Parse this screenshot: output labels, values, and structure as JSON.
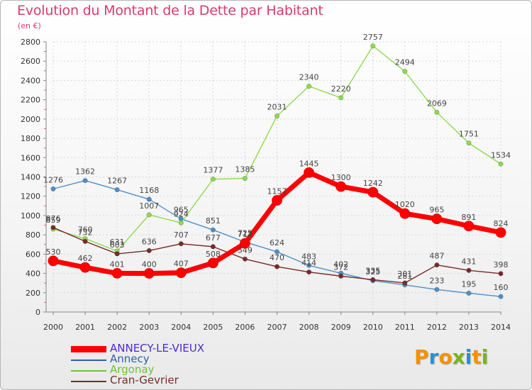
{
  "title": "Evolution du Montant de la Dette par Habitant",
  "subtitle": "(en €)",
  "logo": {
    "text": "Proxiti",
    "colors": [
      "#f39200",
      "#2a8fd1",
      "#f39200",
      "#79b51c",
      "#2a8fd1",
      "#f39200",
      "#79b51c"
    ]
  },
  "chart_data": {
    "type": "line",
    "title": "Evolution du Montant de la Dette par Habitant",
    "ylabel": "(en €)",
    "x": [
      "2000",
      "2001",
      "2002",
      "2003",
      "2004",
      "2005",
      "2006",
      "2007",
      "2008",
      "2009",
      "2010",
      "2011",
      "2012",
      "2013",
      "2014"
    ],
    "ylim": [
      0,
      2800
    ],
    "yticks": [
      0,
      200,
      400,
      600,
      800,
      1000,
      1200,
      1400,
      1600,
      1800,
      2000,
      2200,
      2400,
      2600,
      2800
    ],
    "grid": true,
    "legend_position": "bottom-left",
    "series": [
      {
        "name": "ANNECY-LE-VIEUX",
        "color": "#ff0000",
        "legend_color": "#ff0000",
        "values": [
          530,
          462,
          401,
          400,
          407,
          508,
          712,
          1157,
          1445,
          1300,
          1242,
          1020,
          965,
          891,
          824
        ]
      },
      {
        "name": "Annecy",
        "color": "#4f8fc7",
        "legend_color": "#2f5fa8",
        "values": [
          1276,
          1362,
          1267,
          1168,
          965,
          851,
          725,
          624,
          483,
          402,
          325,
          281,
          233,
          195,
          160
        ]
      },
      {
        "name": "Argonay",
        "color": "#8edb4f",
        "legend_color": "#6fc32f",
        "values": [
          859,
          760,
          631,
          1007,
          924,
          1377,
          1385,
          2031,
          2340,
          2220,
          2757,
          2494,
          2069,
          1751,
          1534
        ]
      },
      {
        "name": "Cran-Gevrier",
        "color": "#7a2a2a",
        "legend_color": "#7a2a2a",
        "values": [
          876,
          732,
          603,
          636,
          707,
          677,
          549,
          470,
          414,
          372,
          335,
          301,
          487,
          431,
          398
        ]
      }
    ]
  }
}
